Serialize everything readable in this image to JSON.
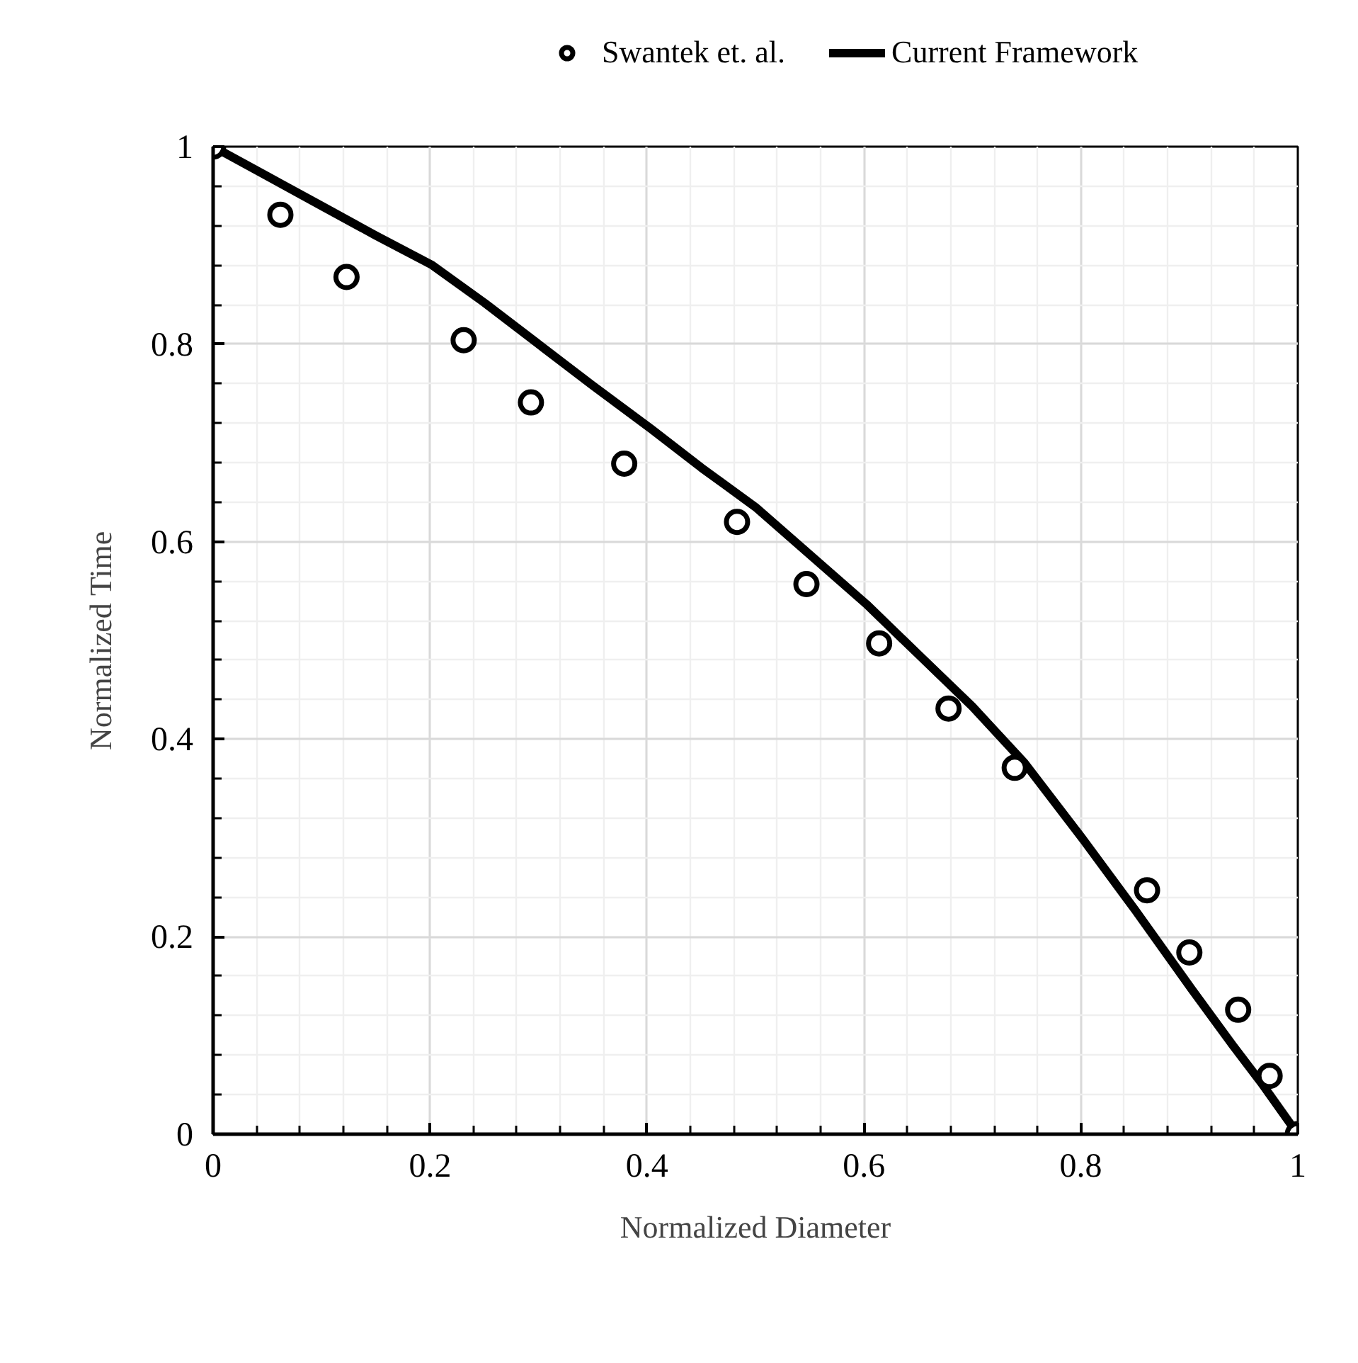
{
  "chart_data": {
    "type": "scatter",
    "xlabel": "Normalized Diameter",
    "ylabel": "Normalized Time",
    "xlim": [
      0,
      1
    ],
    "ylim": [
      0,
      1
    ],
    "xticks": [
      0,
      0.2,
      0.4,
      0.6,
      0.8,
      1
    ],
    "yticks": [
      0,
      0.2,
      0.4,
      0.6,
      0.8,
      1
    ],
    "grid": true,
    "legend": "top",
    "series": [
      {
        "name": "Swantek et. al.",
        "marker": "circle",
        "color": "#000000",
        "x": [
          0,
          0.062,
          0.123,
          0.231,
          0.293,
          0.379,
          0.483,
          0.547,
          0.614,
          0.678,
          0.739,
          0.861,
          0.9,
          0.945,
          0.974,
          1
        ],
        "values": [
          1,
          0.931,
          0.868,
          0.804,
          0.741,
          0.679,
          0.62,
          0.557,
          0.497,
          0.431,
          0.371,
          0.247,
          0.184,
          0.126,
          0.059,
          0
        ]
      },
      {
        "name": "Current Framework",
        "type": "line",
        "line_style": "solid",
        "color": "#000000",
        "x": [
          0,
          0.05,
          0.1,
          0.15,
          0.202,
          0.25,
          0.3,
          0.35,
          0.404,
          0.45,
          0.5,
          0.55,
          0.602,
          0.65,
          0.7,
          0.748,
          0.801,
          0.85,
          0.902,
          0.94,
          0.967,
          1
        ],
        "values": [
          1,
          0.97,
          0.94,
          0.91,
          0.88,
          0.842,
          0.8,
          0.758,
          0.714,
          0.675,
          0.635,
          0.587,
          0.537,
          0.486,
          0.433,
          0.376,
          0.3,
          0.227,
          0.147,
          0.09,
          0.051,
          0
        ]
      }
    ]
  }
}
